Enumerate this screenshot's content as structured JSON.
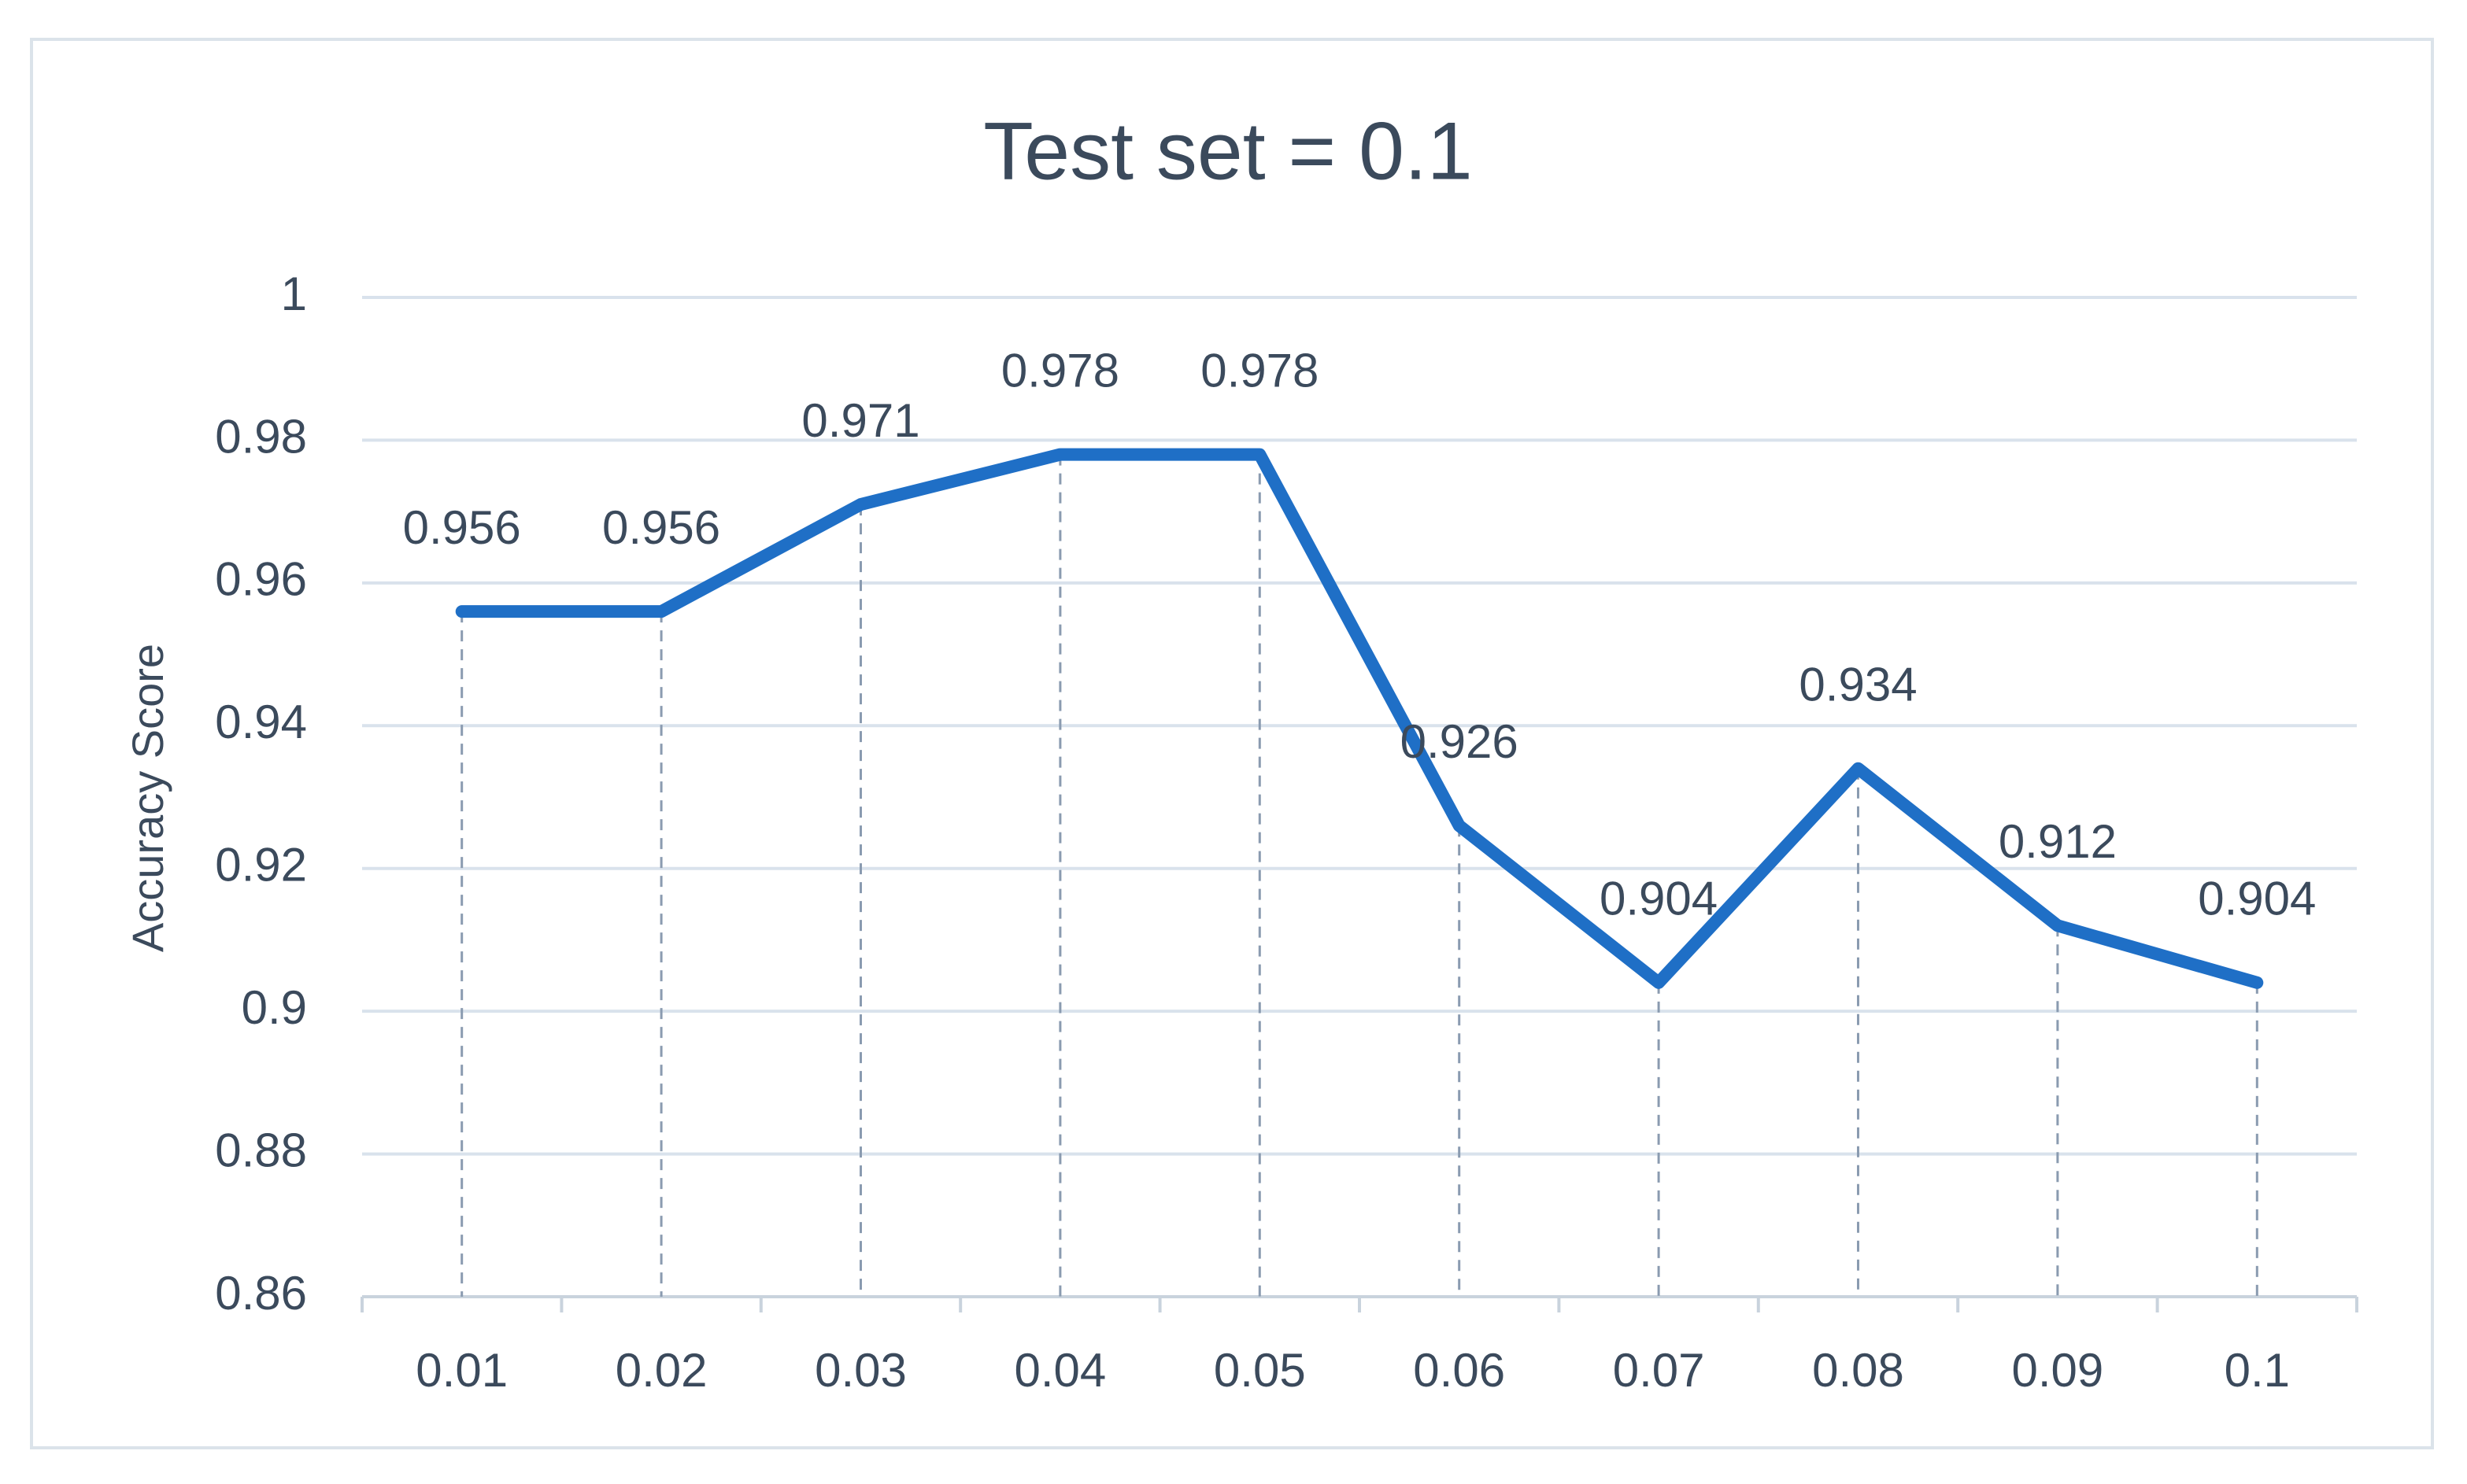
{
  "chart_data": {
    "type": "line",
    "title": "Test set = 0.1",
    "y_label": "Accuracy Score",
    "categories": [
      "0.01",
      "0.02",
      "0.03",
      "0.04",
      "0.05",
      "0.06",
      "0.07",
      "0.08",
      "0.09",
      "0.1"
    ],
    "values": [
      0.956,
      0.956,
      0.971,
      0.978,
      0.978,
      0.926,
      0.904,
      0.934,
      0.912,
      0.904
    ],
    "color": "#1f6fc6",
    "ylim": [
      0.86,
      1
    ],
    "yticks": [
      0.86,
      0.88,
      0.9,
      0.92,
      0.94,
      0.96,
      0.98,
      1
    ],
    "grid": true
  }
}
